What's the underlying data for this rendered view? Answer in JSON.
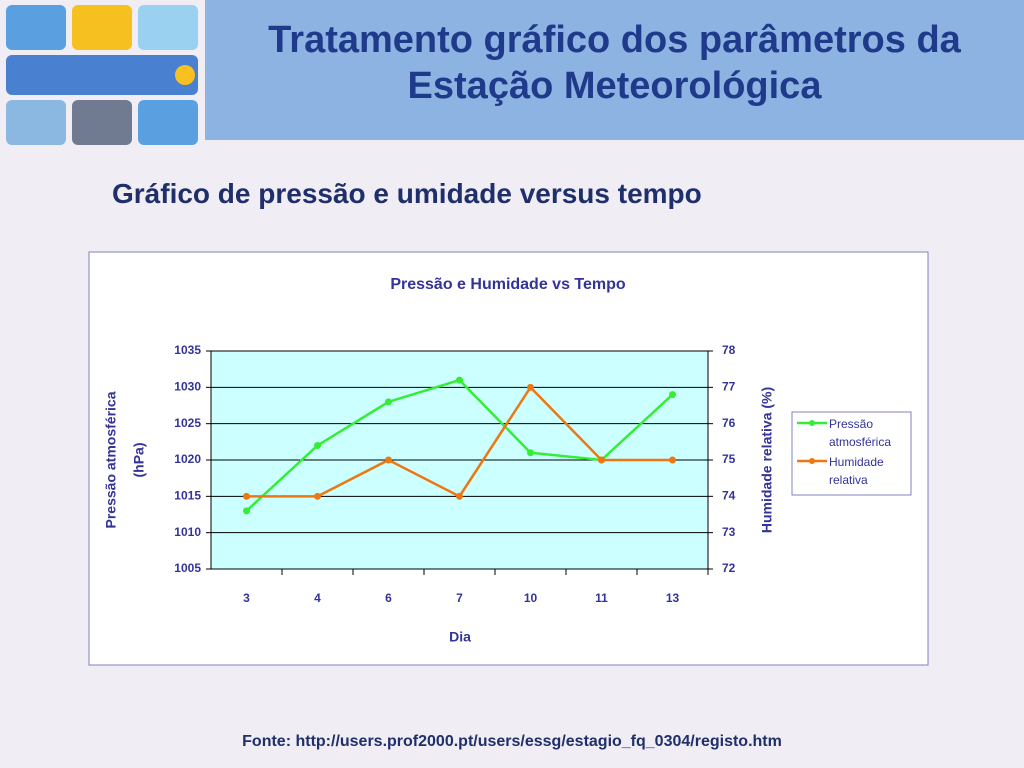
{
  "slide": {
    "title": "Tratamento gráfico dos parâmetros da Estação Meteorológica",
    "subtitle": "Gráfico de pressão e umidade versus tempo",
    "source": "Fonte: http://users.prof2000.pt/users/essg/estagio_fq_0304/registo.htm"
  },
  "chart_data": {
    "type": "line",
    "title": "Pressão e Humidade vs Tempo",
    "xlabel": "Dia",
    "ylabel": [
      "Pressão atmosférica",
      "(hPa)"
    ],
    "y2label": "Humidade relativa (%)",
    "categories": [
      "3",
      "4",
      "6",
      "7",
      "10",
      "11",
      "13"
    ],
    "series": [
      {
        "name": "Pressão atmosférica",
        "color": "#33ee33",
        "values": [
          1013,
          1022,
          1028,
          1031,
          1021,
          1020,
          1029
        ]
      },
      {
        "name": "Humidade relativa",
        "color": "#ee7711",
        "axis": "y2",
        "values": [
          74,
          74,
          75,
          74,
          77,
          75,
          75
        ]
      }
    ],
    "ylim": [
      1005,
      1035
    ],
    "yticks": [
      1005,
      1010,
      1015,
      1020,
      1025,
      1030,
      1035
    ],
    "y2lim": [
      72,
      78
    ],
    "y2ticks": [
      72,
      73,
      74,
      75,
      76,
      77,
      78
    ],
    "grid": true,
    "legend": "right"
  }
}
